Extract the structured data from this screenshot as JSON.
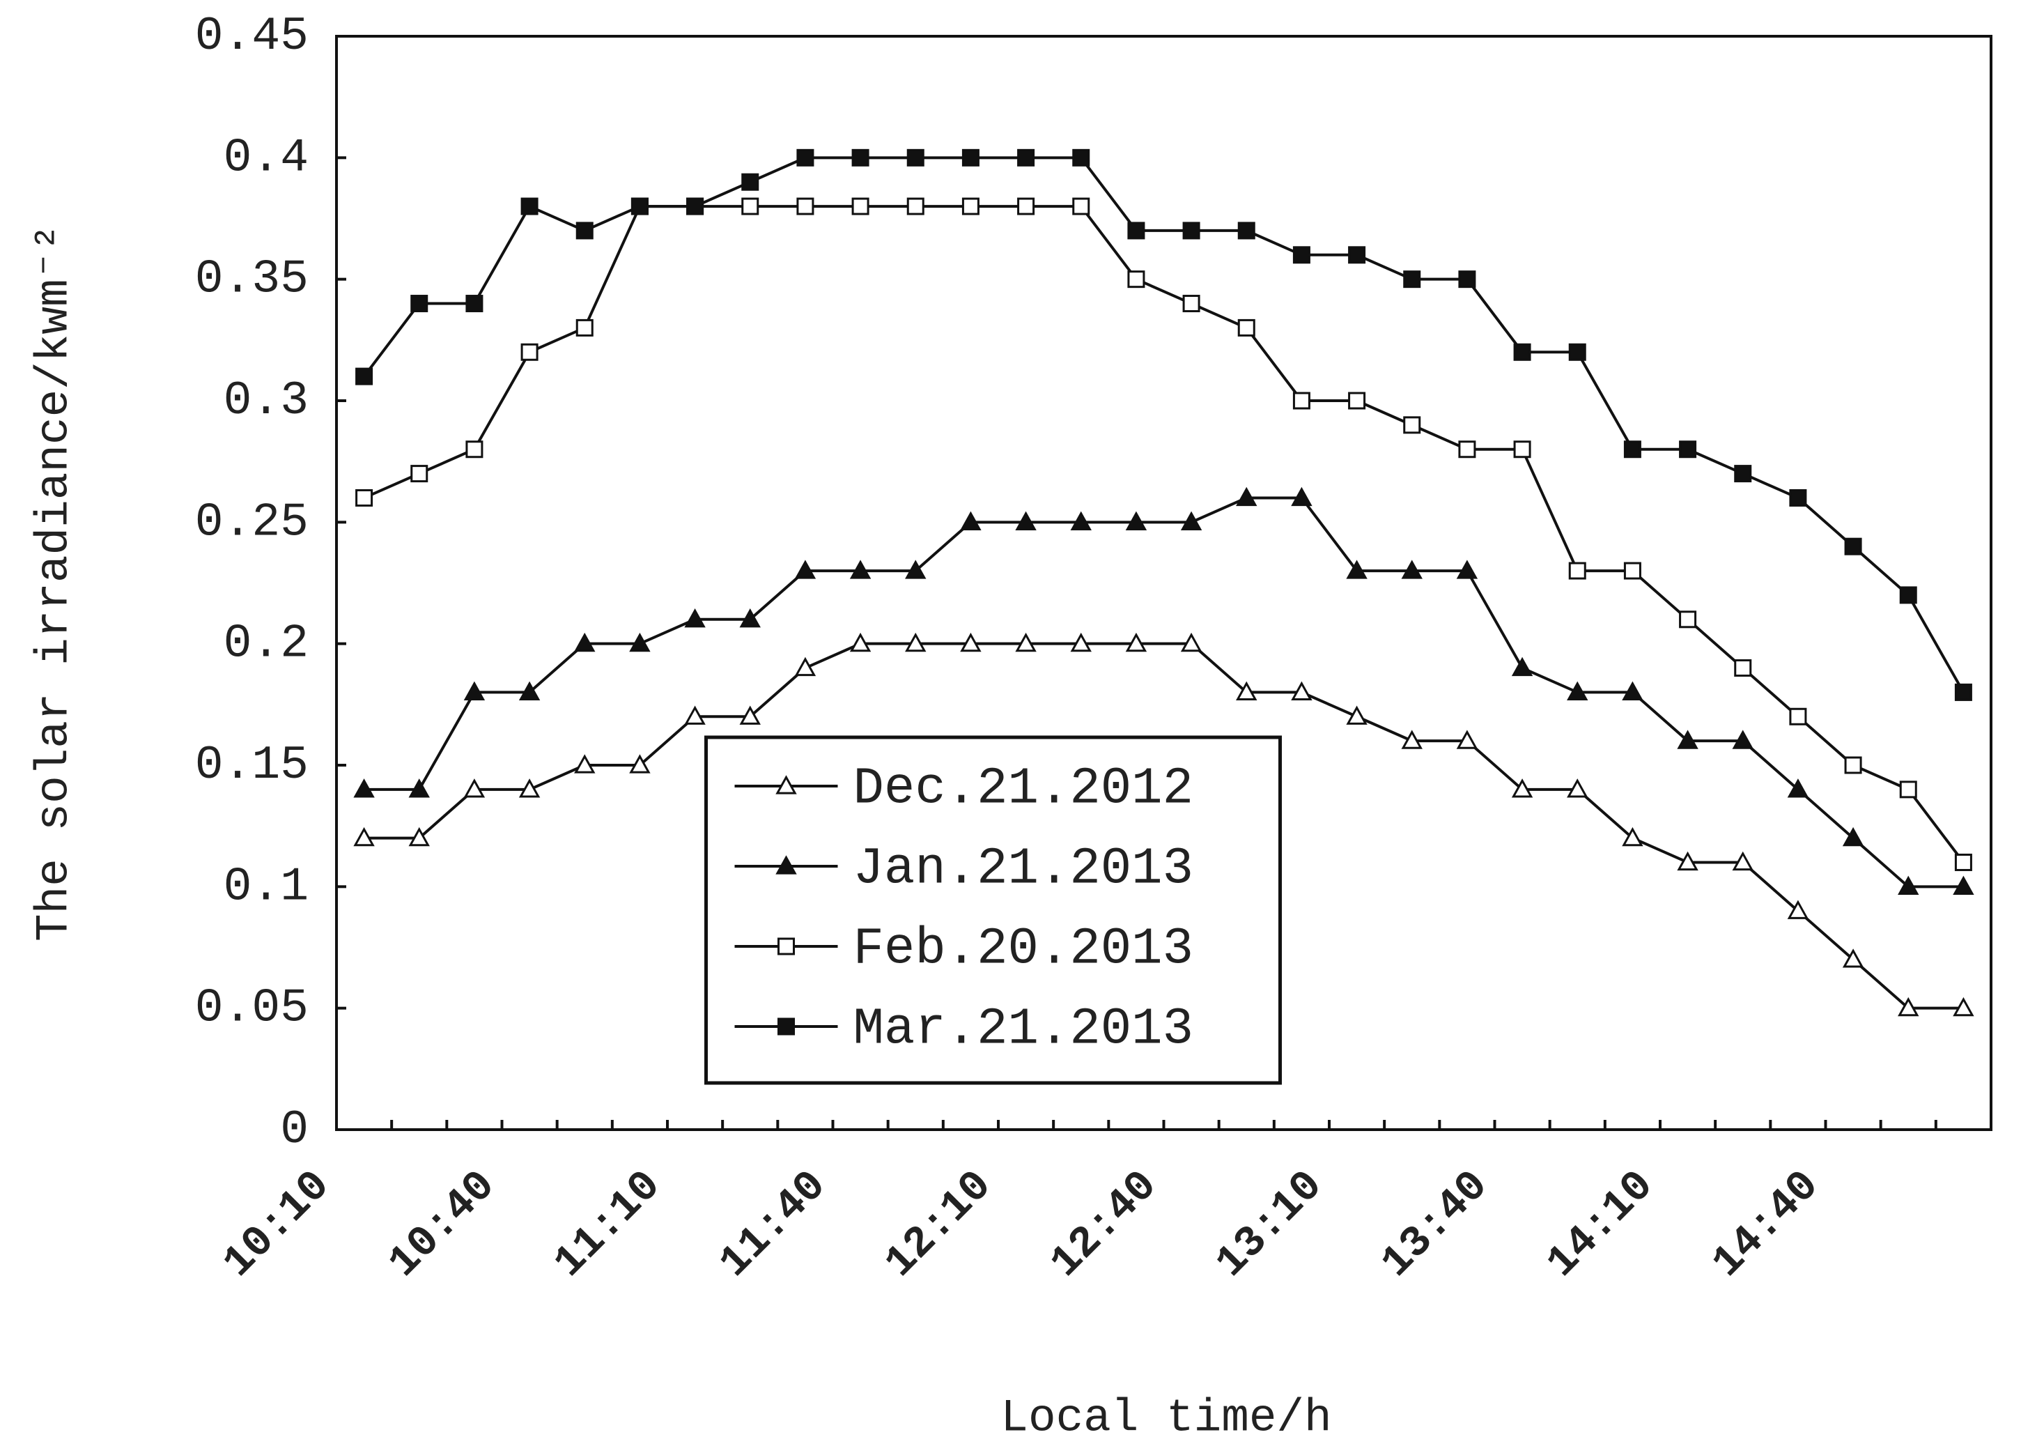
{
  "chart_data": {
    "type": "line",
    "x_label": "Local time/h",
    "y_label": "The solar irradiance/kwm⁻²",
    "categories": [
      "10:10",
      null,
      null,
      "10:40",
      null,
      null,
      "11:10",
      null,
      null,
      "11:40",
      null,
      null,
      "12:10",
      null,
      null,
      "12:40",
      null,
      null,
      "13:10",
      null,
      null,
      "13:40",
      null,
      null,
      "14:10",
      null,
      null,
      "14:40",
      null,
      null
    ],
    "ylim": [
      0,
      0.45
    ],
    "yticks": [
      0,
      0.05,
      0.1,
      0.15,
      0.2,
      0.25,
      0.3,
      0.35,
      0.4,
      0.45
    ],
    "legend": "lower center",
    "series": [
      {
        "name": "Dec.21.2012",
        "color": "#111111",
        "marker": "triangle",
        "filled": false,
        "values": [
          0.12,
          0.12,
          0.14,
          0.14,
          0.15,
          0.15,
          0.17,
          0.17,
          0.19,
          0.2,
          0.2,
          0.2,
          0.2,
          0.2,
          0.2,
          0.2,
          0.18,
          0.18,
          0.17,
          0.16,
          0.16,
          0.14,
          0.14,
          0.12,
          0.11,
          0.11,
          0.09,
          0.07,
          0.05,
          0.05
        ]
      },
      {
        "name": "Jan.21.2013",
        "color": "#111111",
        "marker": "triangle",
        "filled": true,
        "values": [
          0.14,
          0.14,
          0.18,
          0.18,
          0.2,
          0.2,
          0.21,
          0.21,
          0.23,
          0.23,
          0.23,
          0.25,
          0.25,
          0.25,
          0.25,
          0.25,
          0.26,
          0.26,
          0.23,
          0.23,
          0.23,
          0.19,
          0.18,
          0.18,
          0.16,
          0.16,
          0.14,
          0.12,
          0.1,
          0.1
        ]
      },
      {
        "name": "Feb.20.2013",
        "color": "#111111",
        "marker": "square",
        "filled": false,
        "values": [
          0.26,
          0.27,
          0.28,
          0.32,
          0.33,
          0.38,
          0.38,
          0.38,
          0.38,
          0.38,
          0.38,
          0.38,
          0.38,
          0.38,
          0.35,
          0.34,
          0.33,
          0.3,
          0.3,
          0.29,
          0.28,
          0.28,
          0.23,
          0.23,
          0.21,
          0.19,
          0.17,
          0.15,
          0.14,
          0.11
        ]
      },
      {
        "name": "Mar.21.2013",
        "color": "#111111",
        "marker": "square",
        "filled": true,
        "values": [
          0.31,
          0.34,
          0.34,
          0.38,
          0.37,
          0.38,
          0.38,
          0.39,
          0.4,
          0.4,
          0.4,
          0.4,
          0.4,
          0.4,
          0.37,
          0.37,
          0.37,
          0.36,
          0.36,
          0.35,
          0.35,
          0.32,
          0.32,
          0.28,
          0.28,
          0.27,
          0.26,
          0.24,
          0.22,
          0.18
        ]
      }
    ]
  }
}
